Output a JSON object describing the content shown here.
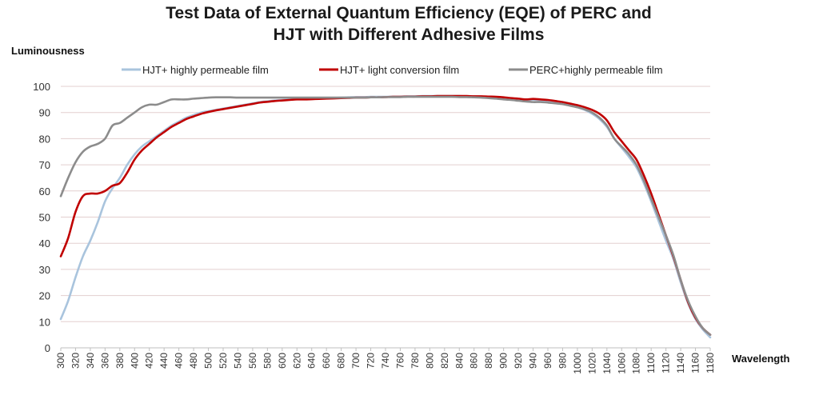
{
  "chart_data": {
    "type": "line",
    "title_lines": [
      "Test Data of External Quantum Efficiency (EQE) of PERC and",
      "HJT with Different Adhesive Films"
    ],
    "ylabel": "Luminousness",
    "xlabel": "Wavelength",
    "ylim": [
      0,
      100
    ],
    "yticks": [
      0,
      10,
      20,
      30,
      40,
      50,
      60,
      70,
      80,
      90,
      100
    ],
    "xticks": [
      "300",
      "320",
      "340",
      "360",
      "380",
      "400",
      "420",
      "440",
      "460",
      "480",
      "500",
      "520",
      "540",
      "560",
      "580",
      "600",
      "620",
      "640",
      "660",
      "680",
      "700",
      "720",
      "740",
      "760",
      "780",
      "800",
      "820",
      "840",
      "860",
      "880",
      "900",
      "920",
      "940",
      "960",
      "980",
      "1000",
      "1020",
      "1040",
      "1060",
      "1080",
      "1100",
      "1120",
      "1140",
      "1160",
      "1180"
    ],
    "grid": true,
    "legend_position": "top",
    "x": [
      300,
      310,
      320,
      330,
      340,
      350,
      360,
      370,
      380,
      390,
      400,
      410,
      420,
      430,
      440,
      450,
      460,
      470,
      480,
      490,
      500,
      510,
      520,
      530,
      540,
      550,
      560,
      570,
      580,
      590,
      600,
      610,
      620,
      630,
      640,
      650,
      660,
      670,
      680,
      690,
      700,
      710,
      720,
      730,
      740,
      750,
      760,
      770,
      780,
      790,
      800,
      810,
      820,
      830,
      840,
      850,
      860,
      870,
      880,
      890,
      900,
      910,
      920,
      930,
      940,
      950,
      960,
      970,
      980,
      990,
      1000,
      1010,
      1020,
      1030,
      1040,
      1050,
      1060,
      1070,
      1080,
      1090,
      1100,
      1110,
      1120,
      1130,
      1140,
      1150,
      1160,
      1170,
      1180
    ],
    "series": [
      {
        "name": "HJT+ highly permeable film",
        "color": "#a9c4dd",
        "values": [
          11,
          18,
          27,
          35,
          41,
          48,
          56,
          61,
          65,
          70,
          74,
          77,
          79,
          81,
          83,
          85,
          86.5,
          88,
          89,
          90,
          90.5,
          91,
          91.5,
          92,
          92.5,
          93,
          93.5,
          94,
          94.3,
          94.6,
          94.8,
          95,
          95.1,
          95.2,
          95.3,
          95.4,
          95.5,
          95.6,
          95.7,
          95.8,
          95.9,
          95.9,
          96,
          96,
          96,
          96.1,
          96.1,
          96.2,
          96.2,
          96.3,
          96.3,
          96.3,
          96.3,
          96.3,
          96.3,
          96.2,
          96.2,
          96.1,
          96,
          95.8,
          95.5,
          95.2,
          95,
          94.9,
          94.9,
          94.7,
          94.4,
          94,
          93.5,
          92.8,
          92,
          91,
          89.5,
          87.5,
          84.5,
          80,
          76.5,
          73,
          69,
          63,
          56,
          48.5,
          41,
          34,
          25,
          17,
          11,
          7,
          4
        ]
      },
      {
        "name": "HJT+ light conversion film",
        "color": "#c00000",
        "values": [
          35,
          42,
          52,
          58,
          59,
          59,
          60,
          62,
          63,
          67,
          72,
          75.5,
          78,
          80.5,
          82.5,
          84.5,
          86,
          87.5,
          88.5,
          89.5,
          90.2,
          90.8,
          91.3,
          91.8,
          92.3,
          92.8,
          93.3,
          93.8,
          94.1,
          94.4,
          94.6,
          94.8,
          95,
          95,
          95.1,
          95.2,
          95.3,
          95.4,
          95.5,
          95.6,
          95.7,
          95.7,
          95.8,
          95.8,
          95.9,
          96,
          96,
          96.1,
          96.1,
          96.2,
          96.2,
          96.3,
          96.3,
          96.3,
          96.3,
          96.3,
          96.2,
          96.2,
          96.1,
          96,
          95.8,
          95.5,
          95.3,
          95,
          95.2,
          95,
          94.8,
          94.4,
          94,
          93.4,
          92.8,
          92,
          91,
          89.5,
          87,
          82.5,
          79,
          75.5,
          72,
          66,
          59,
          51,
          43,
          35,
          26,
          17.5,
          11.5,
          7.5,
          5
        ]
      },
      {
        "name": "PERC+highly permeable film",
        "color": "#8c8c8c",
        "values": [
          58,
          65,
          71,
          75,
          77,
          78,
          80,
          85,
          86,
          88,
          90,
          92,
          93,
          93,
          94,
          95,
          95,
          95,
          95.3,
          95.5,
          95.7,
          95.8,
          95.8,
          95.8,
          95.7,
          95.7,
          95.7,
          95.7,
          95.7,
          95.7,
          95.7,
          95.7,
          95.7,
          95.7,
          95.7,
          95.7,
          95.7,
          95.7,
          95.7,
          95.7,
          95.7,
          95.7,
          95.8,
          95.8,
          95.9,
          95.9,
          95.9,
          96,
          96,
          96,
          96,
          96,
          96,
          96,
          95.9,
          95.9,
          95.8,
          95.7,
          95.5,
          95.3,
          95,
          94.8,
          94.5,
          94.2,
          94,
          94,
          93.8,
          93.5,
          93.2,
          92.6,
          92,
          91.2,
          90,
          88,
          85,
          80,
          77,
          74,
          70,
          64,
          57,
          50,
          43,
          35.5,
          26,
          18,
          12,
          7.5,
          5
        ]
      }
    ]
  }
}
